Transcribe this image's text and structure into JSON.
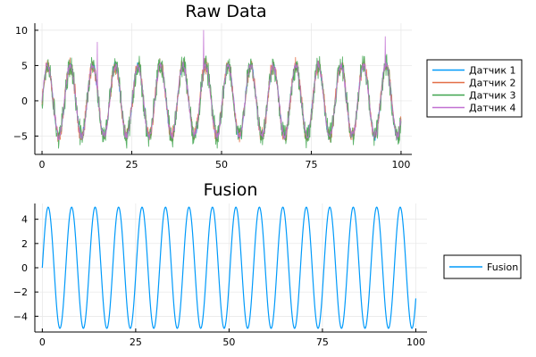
{
  "chart_data": [
    {
      "type": "line",
      "title": "Raw Data",
      "xlabel": "",
      "ylabel": "",
      "xlim": [
        -2,
        103
      ],
      "ylim": [
        -7.6,
        11
      ],
      "xticks": [
        0,
        25,
        50,
        75,
        100
      ],
      "yticks": [
        -5,
        0,
        5,
        10
      ],
      "grid": true,
      "legend_position": "right",
      "signal": {
        "amplitude": 5,
        "period": 6.28318,
        "x_start": 0,
        "x_end": 100
      },
      "series": [
        {
          "name": "Датчик 1",
          "color": "#009AFA",
          "noise_amplitude": 0.45,
          "seed": 11
        },
        {
          "name": "Датчик 2",
          "color": "#E36F47",
          "noise_amplitude": 0.9,
          "seed": 23
        },
        {
          "name": "Датчик 3",
          "color": "#3EA44E",
          "noise_amplitude": 1.35,
          "seed": 37
        },
        {
          "name": "Датчик 4",
          "color": "#C271D2",
          "noise_amplitude": 0.5,
          "seed": 51,
          "spikes": [
            {
              "x": 15.4,
              "y": 8.3
            },
            {
              "x": 45.0,
              "y": 10.0
            },
            {
              "x": 95.6,
              "y": 9.1
            }
          ]
        }
      ]
    },
    {
      "type": "line",
      "title": "Fusion",
      "xlabel": "",
      "ylabel": "",
      "xlim": [
        -2,
        103
      ],
      "ylim": [
        -5.3,
        5.3
      ],
      "xticks": [
        0,
        25,
        50,
        75,
        100
      ],
      "yticks": [
        -4,
        -2,
        0,
        2,
        4
      ],
      "grid": true,
      "legend_position": "right",
      "series": [
        {
          "name": "Fusion",
          "color": "#009AFA",
          "amplitude": 5,
          "period": 6.28318,
          "x_start": 0,
          "x_end": 100
        }
      ]
    }
  ]
}
